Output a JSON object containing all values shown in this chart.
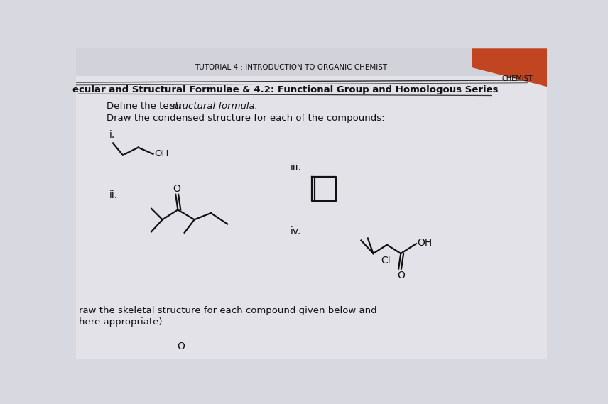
{
  "bg_color": "#d8d8e0",
  "page_color": "#e2e2e8",
  "title_top": "TUTORIAL 4 : INTRODUCTION TO ORGANIC CHEMIST",
  "heading": "ecular and Structural Formulae & 4.2: Functional Group and Homologous Series",
  "define_plain": "Define the term ",
  "define_italic": "structural formula.",
  "draw_line": "Draw the condensed structure for each of the compounds:",
  "label_i": "i.",
  "label_ii": "ii.",
  "label_iii": "iii.",
  "label_iv": "iv.",
  "bottom_line1": "raw the skeletal structure for each compound given below and",
  "bottom_line2": "here appropriate).",
  "bottom_o": "O",
  "line_color": "#222222",
  "text_color": "#111111",
  "struct_color": "#111111",
  "lw": 1.6
}
